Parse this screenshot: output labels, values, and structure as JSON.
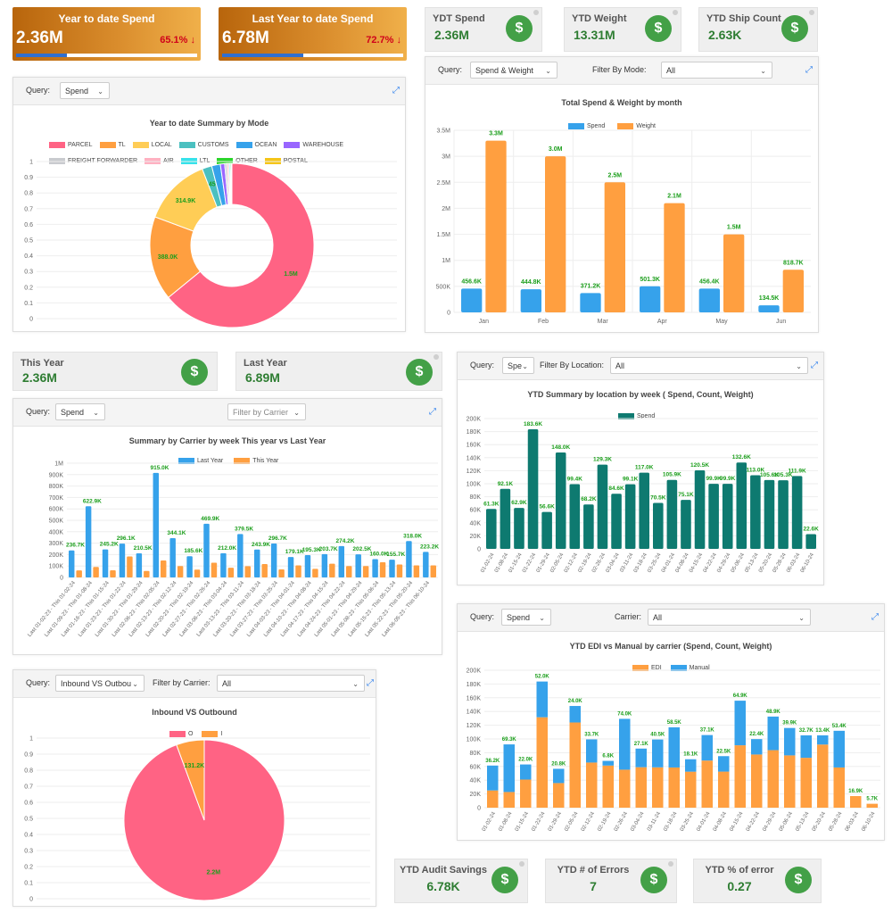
{
  "ytd_spend_card": {
    "title": "Year to date Spend",
    "value": "2.36M",
    "percent": "65.1%",
    "progress": 0.28
  },
  "lytd_spend_card": {
    "title": "Last Year to date Spend",
    "value": "6.78M",
    "percent": "72.7%",
    "progress": 0.45
  },
  "kpi_ydt_spend": {
    "title": "YDT Spend",
    "value": "2.36M"
  },
  "kpi_ytd_weight": {
    "title": "YTD Weight",
    "value": "13.31M"
  },
  "kpi_ytd_ship_count": {
    "title": "YTD Ship Count",
    "value": "2.63K"
  },
  "kpi_this_year": {
    "title": "This Year",
    "value": "2.36M"
  },
  "kpi_last_year": {
    "title": "Last Year",
    "value": "6.89M"
  },
  "kpi_audit_savings": {
    "title": "YTD Audit Savings",
    "value": "6.78K"
  },
  "kpi_errors": {
    "title": "YTD # of Errors",
    "value": "7"
  },
  "kpi_error_pct": {
    "title": "YTD % of error",
    "value": "0.27"
  },
  "icons": {
    "dollar": "$",
    "arrow_down": "↓",
    "chevron": "⌄",
    "expand": "⤢"
  },
  "colors": {
    "pink": "#ff6384",
    "orange": "#ff9f40",
    "yellow": "#ffcd56",
    "teal": "#4bc0c0",
    "blue": "#36a2eb",
    "purple": "#9966ff",
    "grey": "#c9cbcf",
    "lightpink": "#ffb1c1",
    "cyan": "#36e2eb",
    "green": "#2bd52b",
    "gold": "#f5c518",
    "darkteal": "#0e7a70",
    "label_green": "#1b9e1b"
  },
  "mode_panel": {
    "query_label": "Query:",
    "query_value": "Spend"
  },
  "spend_weight_panel": {
    "query_label": "Query:",
    "query_value": "Spend & Weight",
    "filter_label": "Filter By Mode:",
    "filter_value": "All"
  },
  "carrier_panel": {
    "query_label": "Query:",
    "query_value": "Spend",
    "filter_placeholder": "Filter by Carrier"
  },
  "location_panel": {
    "query_label": "Query:",
    "query_value": "Spe",
    "filter_label": "Filter By Location:",
    "filter_value": "All"
  },
  "edi_panel": {
    "query_label": "Query:",
    "query_value": "Spend",
    "filter_label": "Carrier:",
    "filter_value": "All"
  },
  "inout_panel": {
    "query_label": "Query:",
    "query_value": "Inbound VS Outbou",
    "filter_label": "Filter by Carrier:",
    "filter_value": "All"
  },
  "chart_data": [
    {
      "id": "mode",
      "type": "pie",
      "title": "Year to date Summary by Mode",
      "doughnut": true,
      "legend": [
        "PARCEL",
        "TL",
        "LOCAL",
        "CUSTOMS",
        "OCEAN",
        "WAREHOUSE",
        "FREIGHT FORWARDER",
        "AIR",
        "LTL",
        "OTHER",
        "POSTAL"
      ],
      "values": [
        1500,
        388,
        314.9,
        45,
        40,
        20,
        10,
        8,
        6,
        5,
        4
      ],
      "labels": [
        "1.5M",
        "388.0K",
        "314.9K",
        "45",
        "",
        "",
        "",
        "",
        "",
        "",
        ""
      ],
      "yticks": [
        "1",
        "0.9",
        "0.8",
        "0.7",
        "0.6",
        "0.5",
        "0.4",
        "0.3",
        "0.2",
        "0.1",
        "0"
      ]
    },
    {
      "id": "spend_weight",
      "type": "bar",
      "title": "Total Spend & Weight by month",
      "categories": [
        "Jan",
        "Feb",
        "Mar",
        "Apr",
        "May",
        "Jun"
      ],
      "series": [
        {
          "name": "Spend",
          "values": [
            456.6,
            444.8,
            371.2,
            501.3,
            456.4,
            134.5
          ],
          "labels": [
            "456.6K",
            "444.8K",
            "371.2K",
            "501.3K",
            "456.4K",
            "134.5K"
          ]
        },
        {
          "name": "Weight",
          "values": [
            3300,
            3000,
            2500,
            2100,
            1500,
            818.7
          ],
          "labels": [
            "3.3M",
            "3.0M",
            "2.5M",
            "2.1M",
            "1.5M",
            "818.7K"
          ]
        }
      ],
      "ylim": [
        0,
        3500
      ],
      "yticks": [
        "0",
        "500K",
        "1M",
        "1.5M",
        "2M",
        "2.5M",
        "3M",
        "3.5M"
      ]
    },
    {
      "id": "carrier",
      "type": "bar",
      "title": "Summary by Carrier by week This year vs Last Year",
      "series": [
        {
          "name": "Last Year",
          "values": [
            236.7,
            622.9,
            245.2,
            296.1,
            210.5,
            915,
            344.1,
            185.6,
            469.9,
            212,
            379.5,
            243.9,
            296.7,
            179.1,
            195.3,
            203.7,
            274.2,
            202.5,
            160,
            155.7,
            318,
            223.2
          ]
        },
        {
          "name": "This Year",
          "values": [
            61.3,
            92.1,
            62.9,
            183.6,
            56.6,
            148,
            99.4,
            68.2,
            129.3,
            84.6,
            99.1,
            117,
            70.5,
            105.9,
            75.1,
            120.5,
            99.9,
            99.9,
            132.6,
            113,
            105.6,
            105.3
          ]
        }
      ],
      "labels": [
        "236.7K",
        "622.9K",
        "245.2K",
        "296.1K",
        "210.5K",
        "915.0K",
        "344.1K",
        "185.6K",
        "469.9K",
        "212.0K",
        "379.5K",
        "243.9K",
        "296.7K",
        "179.1K",
        "195.3K",
        "203.7K",
        "274.2K",
        "202.5K",
        "160.0K",
        "155.7K",
        "318.0K",
        "223.2K"
      ],
      "categories": [
        "Last 01-02-23 - This 01-02-24",
        "Last 01-09-23 - This 01-08-24",
        "Last 01-16-23 - This 01-15-24",
        "Last 01-23-23 - This 01-22-24",
        "Last 01-30-23 - This 01-29-24",
        "Last 02-06-23 - This 02-05-24",
        "Last 02-13-23 - This 02-12-24",
        "Last 02-20-23 - This 02-19-24",
        "Last 02-27-23 - This 02-26-24",
        "Last 03-06-23 - This 03-04-24",
        "Last 03-13-23 - This 03-11-24",
        "Last 03-20-23 - This 03-18-24",
        "Last 03-27-23 - This 03-25-24",
        "Last 04-03-23 - This 04-01-24",
        "Last 04-10-23 - This 04-08-24",
        "Last 04-17-23 - This 04-15-24",
        "Last 04-24-23 - This 04-22-24",
        "Last 05-01-23 - This 04-29-24",
        "Last 05-08-23 - This 05-06-24",
        "Last 05-15-23 - This 05-13-24",
        "Last 05-22-23 - This 05-20-24",
        "Last 06-05-23 - This 06-10-24"
      ],
      "ylim": [
        0,
        1000
      ],
      "yticks": [
        "0",
        "100K",
        "200K",
        "300K",
        "400K",
        "500K",
        "600K",
        "700K",
        "800K",
        "900K",
        "1M"
      ]
    },
    {
      "id": "location",
      "type": "bar",
      "title": "YTD Summary by location by week ( Spend, Count, Weight)",
      "legend": [
        "Spend"
      ],
      "categories": [
        "01-02-24",
        "01-08-24",
        "01-15-24",
        "01-22-24",
        "01-29-24",
        "02-05-24",
        "02-12-24",
        "02-19-24",
        "02-26-24",
        "03-04-24",
        "03-11-24",
        "03-18-24",
        "03-25-24",
        "04-01-24",
        "04-08-24",
        "04-15-24",
        "04-22-24",
        "04-29-24",
        "05-06-24",
        "05-13-24",
        "05-20-24",
        "05-28-24",
        "06-03-24",
        "06-10-24"
      ],
      "values": [
        61.3,
        92.1,
        62.9,
        183.6,
        56.6,
        148,
        99.4,
        68.2,
        129.3,
        84.6,
        99.1,
        117,
        70.5,
        105.9,
        75.1,
        120.5,
        99.9,
        99.9,
        132.6,
        113,
        105.6,
        105.3,
        111.9,
        22.6
      ],
      "labels": [
        "61.3K",
        "92.1K",
        "62.9K",
        "183.6K",
        "56.6K",
        "148.0K",
        "99.4K",
        "68.2K",
        "129.3K",
        "84.6K",
        "99.1K",
        "117.0K",
        "70.5K",
        "105.9K",
        "75.1K",
        "120.5K",
        "99.9K",
        "99.9K",
        "132.6K",
        "113.0K",
        "105.6K",
        "105.3K",
        "111.9K",
        "22.6K"
      ],
      "ylim": [
        0,
        200
      ],
      "yticks": [
        "0",
        "20K",
        "40K",
        "60K",
        "80K",
        "100K",
        "120K",
        "140K",
        "160K",
        "180K",
        "200K"
      ]
    },
    {
      "id": "edi",
      "type": "bar",
      "stacked": true,
      "title": "YTD EDI vs Manual by carrier (Spend, Count, Weight)",
      "categories": [
        "01-02-24",
        "01-08-24",
        "01-15-24",
        "01-22-24",
        "01-29-24",
        "02-05-24",
        "02-12-24",
        "02-19-24",
        "02-26-24",
        "03-04-24",
        "03-11-24",
        "03-18-24",
        "03-25-24",
        "04-01-24",
        "04-08-24",
        "04-15-24",
        "04-22-24",
        "04-29-24",
        "05-06-24",
        "05-13-24",
        "05-20-24",
        "05-28-24",
        "06-03-24",
        "06-10-24"
      ],
      "series": [
        {
          "name": "EDI",
          "values": [
            25.1,
            22.8,
            40.9,
            131.6,
            35.8,
            124,
            65.7,
            61.3,
            55.3,
            58.9,
            58.7,
            58.5,
            52.4,
            68.6,
            52.5,
            90.8,
            77.4,
            83.7,
            76.1,
            72.6,
            91.9,
            58.5,
            16.9,
            5.7
          ]
        },
        {
          "name": "Manual",
          "values": [
            36.2,
            69.3,
            22,
            52,
            20.8,
            24,
            33.7,
            6.8,
            74,
            27.1,
            40.5,
            58.5,
            18.1,
            37.1,
            22.5,
            64.9,
            22.4,
            48.9,
            39.9,
            32.7,
            13.4,
            53.4,
            0,
            0
          ]
        }
      ],
      "labels": [
        "36.2K",
        "69.3K",
        "22.0K",
        "52.0K",
        "20.8K",
        "24.0K",
        "33.7K",
        "6.8K",
        "74.0K",
        "27.1K",
        "40.5K",
        "58.5K",
        "18.1K",
        "37.1K",
        "22.5K",
        "64.9K",
        "22.4K",
        "48.9K",
        "39.9K",
        "32.7K",
        "13.4K",
        "53.4K",
        "16.9K",
        "5.7K"
      ],
      "ylim": [
        0,
        200
      ],
      "yticks": [
        "0",
        "20K",
        "40K",
        "60K",
        "80K",
        "100K",
        "120K",
        "140K",
        "160K",
        "180K",
        "200K"
      ]
    },
    {
      "id": "inout",
      "type": "pie",
      "title": "Inbound VS Outbound",
      "legend": [
        "O",
        "I"
      ],
      "values": [
        2200,
        131.2
      ],
      "labels": [
        "2.2M",
        "131.2K"
      ],
      "yticks": [
        "1",
        "0.9",
        "0.8",
        "0.7",
        "0.6",
        "0.5",
        "0.4",
        "0.3",
        "0.2",
        "0.1",
        "0"
      ]
    }
  ]
}
